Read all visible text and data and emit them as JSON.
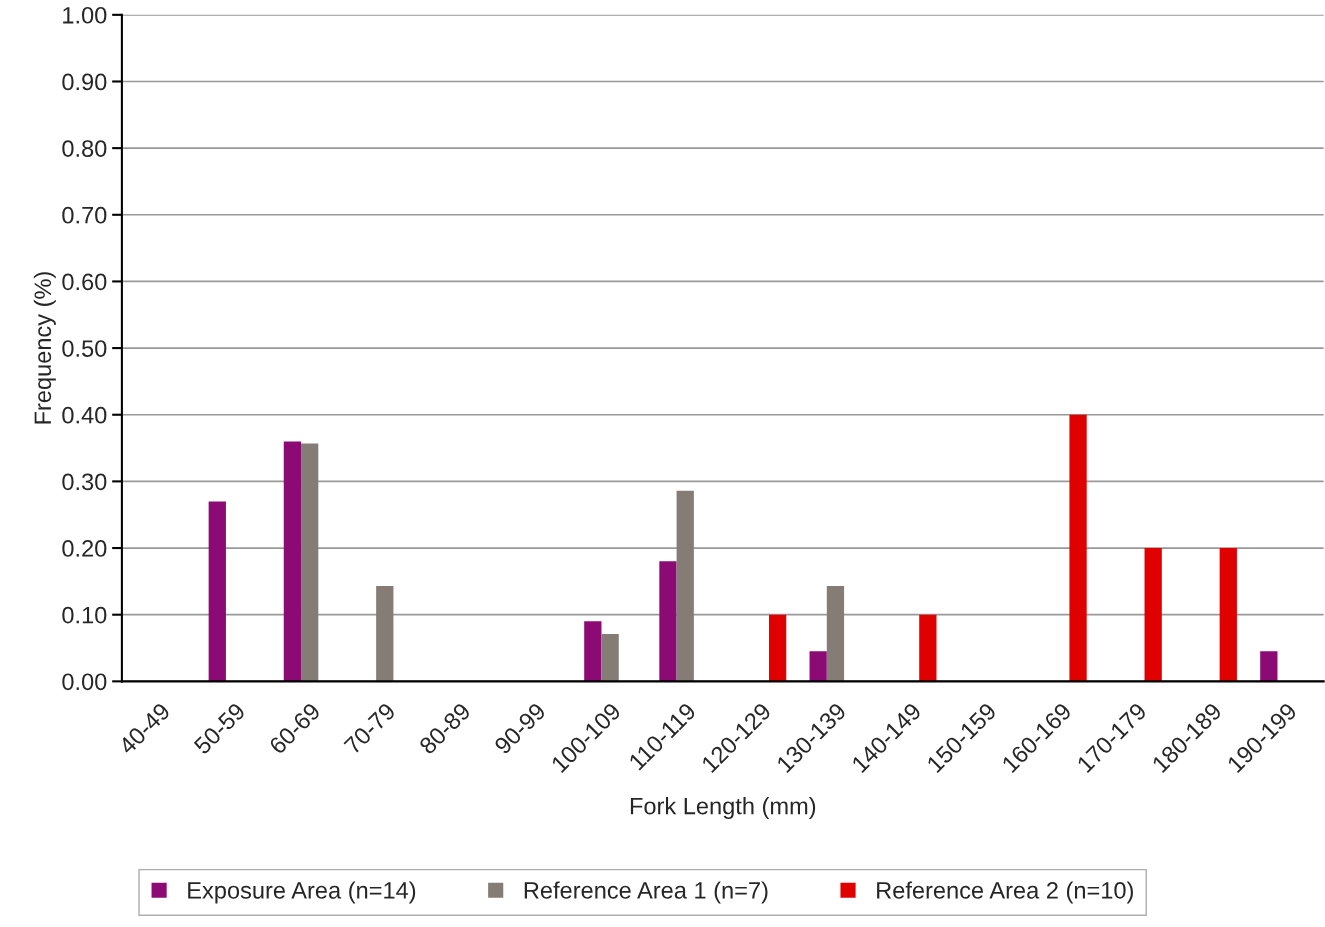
{
  "chart_data": {
    "type": "bar",
    "xlabel": "Fork Length (mm)",
    "ylabel": "Frequency (%)",
    "categories": [
      "40-49",
      "50-59",
      "60-69",
      "70-79",
      "80-89",
      "90-99",
      "100-109",
      "110-119",
      "120-129",
      "130-139",
      "140-149",
      "150-159",
      "160-169",
      "170-179",
      "180-189",
      "190-199"
    ],
    "series": [
      {
        "name": "Exposure Area (n=14)",
        "color": "#8b0a73",
        "values": [
          null,
          0.27,
          0.36,
          null,
          null,
          null,
          0.09,
          0.18,
          null,
          0.045,
          null,
          null,
          null,
          null,
          null,
          0.045
        ]
      },
      {
        "name": "Reference Area 1 (n=7)",
        "color": "#857c75",
        "values": [
          null,
          null,
          0.357,
          0.143,
          null,
          null,
          0.071,
          0.286,
          null,
          0.143,
          null,
          null,
          null,
          null,
          null,
          null
        ]
      },
      {
        "name": "Reference Area 2 (n=10)",
        "color": "#e00000",
        "values": [
          null,
          null,
          null,
          null,
          null,
          null,
          null,
          null,
          0.1,
          null,
          0.1,
          null,
          0.4,
          0.2,
          0.2,
          null
        ]
      }
    ],
    "ylim": [
      0,
      1
    ],
    "yticks": [
      {
        "value": 0,
        "label": "0.00"
      },
      {
        "value": 0.1,
        "label": "0.10"
      },
      {
        "value": 0.2,
        "label": "0.20"
      },
      {
        "value": 0.3,
        "label": "0.30"
      },
      {
        "value": 0.4,
        "label": "0.40"
      },
      {
        "value": 0.5,
        "label": "0.50"
      },
      {
        "value": 0.6,
        "label": "0.60"
      },
      {
        "value": 0.7,
        "label": "0.70"
      },
      {
        "value": 0.8,
        "label": "0.80"
      },
      {
        "value": 0.9,
        "label": "0.90"
      },
      {
        "value": 1,
        "label": "1.00"
      }
    ],
    "grid": "y",
    "legend": "bottom"
  }
}
